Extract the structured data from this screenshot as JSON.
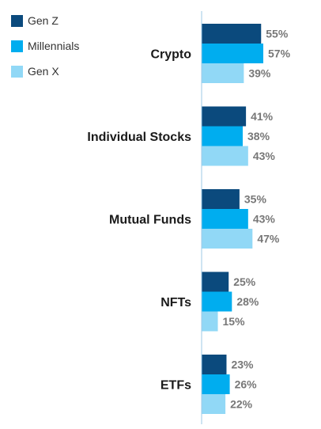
{
  "chart_data": {
    "type": "bar",
    "orientation": "horizontal",
    "categories": [
      "Crypto",
      "Individual Stocks",
      "Mutual Funds",
      "NFTs",
      "ETFs"
    ],
    "series": [
      {
        "name": "Gen Z",
        "values": [
          55,
          41,
          35,
          25,
          23
        ],
        "color": "#0b4a7d"
      },
      {
        "name": "Millennials",
        "values": [
          57,
          38,
          43,
          28,
          26
        ],
        "color": "#00adef"
      },
      {
        "name": "Gen X",
        "values": [
          39,
          43,
          47,
          15,
          22
        ],
        "color": "#91d8f6"
      }
    ],
    "value_suffix": "%",
    "xlim": [
      0,
      100
    ],
    "grid": false,
    "legend_position": "top-left"
  }
}
